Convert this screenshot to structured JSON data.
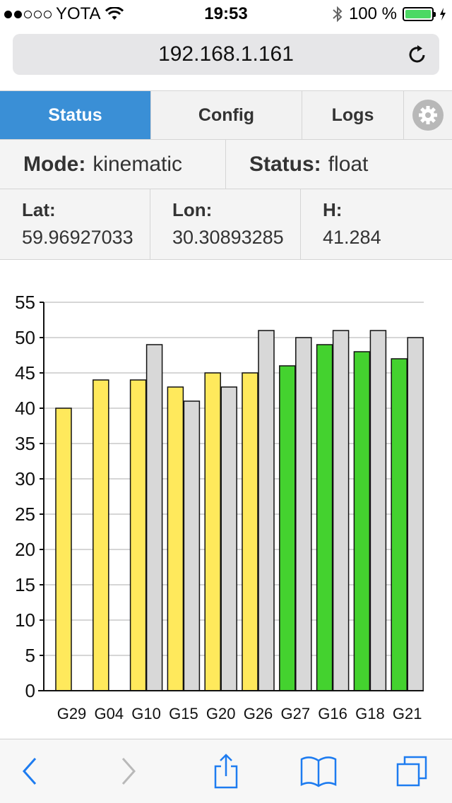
{
  "status_bar": {
    "carrier": "YOTA",
    "time": "19:53",
    "battery": "100 %",
    "signal_dots_filled": 2,
    "signal_dots_total": 5,
    "battery_level": 1.0
  },
  "browser": {
    "url": "192.168.1.161"
  },
  "tabs": [
    {
      "label": "Status",
      "active": true
    },
    {
      "label": "Config",
      "active": false
    },
    {
      "label": "Logs",
      "active": false
    }
  ],
  "info": {
    "mode_label": "Mode:",
    "mode_value": "kinematic",
    "status_label": "Status:",
    "status_value": "float",
    "lat_label": "Lat:",
    "lat_value": "59.96927033",
    "lon_label": "Lon:",
    "lon_value": "30.30893285",
    "h_label": "H:",
    "h_value": "41.284"
  },
  "colors": {
    "active_tab": "#3a8fd6",
    "float_bar": "#ffe95c",
    "fix_bar": "#44d22f",
    "base_bar": "#d8d8d8",
    "ios_blue": "#1e7cf0"
  },
  "chart_data": {
    "type": "bar",
    "categories": [
      "G29",
      "G04",
      "G10",
      "G15",
      "G20",
      "G26",
      "G27",
      "G16",
      "G18",
      "G21"
    ],
    "series": [
      {
        "values": [
          40,
          44,
          44,
          43,
          45,
          45,
          46,
          49,
          48,
          47
        ],
        "colors": [
          "#ffe95c",
          "#ffe95c",
          "#ffe95c",
          "#ffe95c",
          "#ffe95c",
          "#ffe95c",
          "#44d22f",
          "#44d22f",
          "#44d22f",
          "#44d22f"
        ]
      },
      {
        "values": [
          null,
          null,
          49,
          41,
          43,
          51,
          50,
          51,
          51,
          50
        ],
        "colors": [
          "#d8d8d8",
          "#d8d8d8",
          "#d8d8d8",
          "#d8d8d8",
          "#d8d8d8",
          "#d8d8d8",
          "#d8d8d8",
          "#d8d8d8",
          "#d8d8d8",
          "#d8d8d8"
        ]
      }
    ],
    "yticks": [
      0,
      5,
      10,
      15,
      20,
      25,
      30,
      35,
      40,
      45,
      50,
      55
    ],
    "ylim": [
      0,
      55
    ],
    "grid": true,
    "legend": "none",
    "title": "",
    "xlabel": "",
    "ylabel": ""
  }
}
